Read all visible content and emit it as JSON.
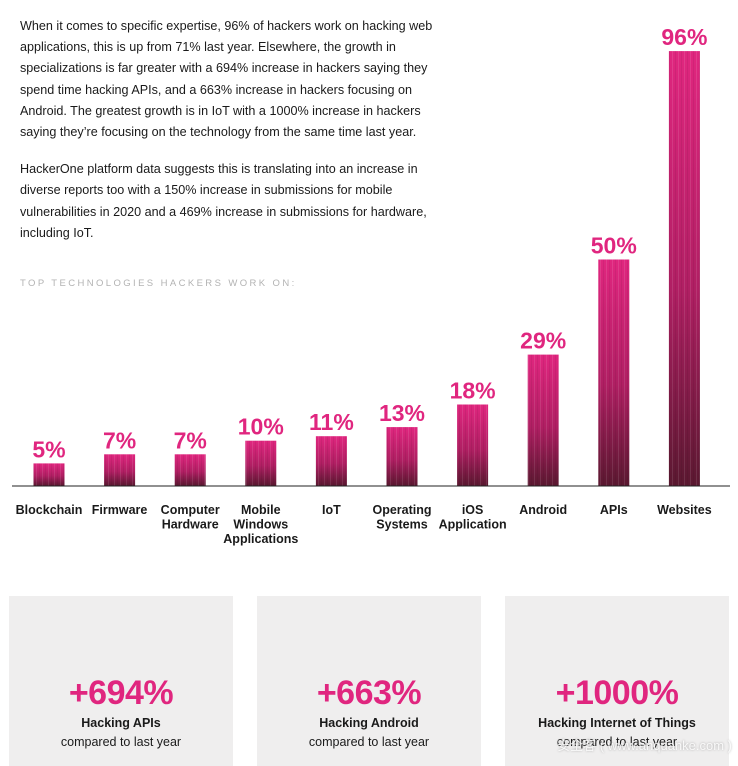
{
  "intro": {
    "paragraph1": "When it comes to specific expertise, 96% of hackers work on hacking web applications, this is up from 71% last year. Elsewhere, the growth in specializations is far greater with a 694% increase in hackers saying they spend time hacking APIs, and a 663% increase in hackers focusing on Android. The greatest growth is in IoT with a 1000% increase in hackers saying they’re focusing on the technology from the same time last year.",
    "paragraph2": "HackerOne platform data suggests this is translating into an increase in diverse reports too with a 150% increase in submissions for mobile vulnerabilities in 2020 and a 469% increase in submissions for hardware, including IoT."
  },
  "chart_data": {
    "type": "bar",
    "title": "TOP TECHNOLOGIES HACKERS WORK ON:",
    "xlabel": "",
    "ylabel": "",
    "ylim": [
      0,
      100
    ],
    "grid": false,
    "categories": [
      "Blockchain",
      "Firmware",
      "Computer Hardware",
      "Mobile Windows Applications",
      "IoT",
      "Operating Systems",
      "iOS Application",
      "Android",
      "APIs",
      "Websites"
    ],
    "category_lines": [
      [
        "Blockchain"
      ],
      [
        "Firmware"
      ],
      [
        "Computer",
        "Hardware"
      ],
      [
        "Mobile",
        "Windows",
        "Applications"
      ],
      [
        "IoT"
      ],
      [
        "Operating",
        "Systems"
      ],
      [
        "iOS",
        "Application"
      ],
      [
        "Android"
      ],
      [
        "APIs"
      ],
      [
        "Websites"
      ]
    ],
    "values": [
      5,
      7,
      7,
      10,
      11,
      13,
      18,
      29,
      50,
      96
    ],
    "value_labels": [
      "5%",
      "7%",
      "7%",
      "10%",
      "11%",
      "13%",
      "18%",
      "29%",
      "50%",
      "96%"
    ],
    "bar_color_top": "#e0267f",
    "bar_color_bottom": "#5a1830"
  },
  "cards": [
    {
      "value": "+694%",
      "label": "Hacking APIs",
      "sub": "compared to last year"
    },
    {
      "value": "+663%",
      "label": "Hacking Android",
      "sub": "compared to last year"
    },
    {
      "value": "+1000%",
      "label": "Hacking Internet of Things",
      "sub": "compared to last year"
    }
  ],
  "watermark": "安全客 ( www.anquanke.com )"
}
